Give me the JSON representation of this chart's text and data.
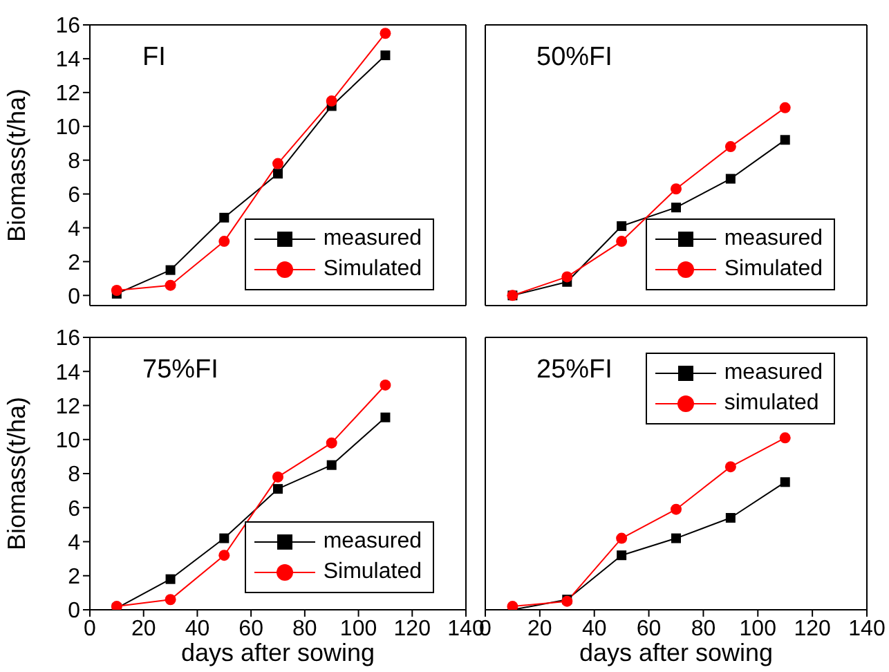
{
  "chart_data": [
    {
      "type": "line",
      "title": "FI",
      "ylabel": "Biomass(t/ha)",
      "x": [
        10,
        30,
        50,
        70,
        90,
        110
      ],
      "xlim": [
        0,
        140
      ],
      "xticks": [
        0,
        20,
        40,
        60,
        80,
        100,
        120,
        140
      ],
      "ylim": [
        -0.6,
        16
      ],
      "yticks": [
        0,
        2,
        4,
        6,
        8,
        10,
        12,
        14,
        16
      ],
      "tick_labels": "y",
      "legend": "bottom right",
      "grid": false,
      "series": [
        {
          "name": "measured",
          "color": "#000000",
          "marker": "square",
          "values": [
            0.1,
            1.5,
            4.6,
            7.2,
            11.2,
            14.2
          ]
        },
        {
          "name": "Simulated",
          "color": "#ff0000",
          "marker": "circle",
          "values": [
            0.3,
            0.6,
            3.2,
            7.8,
            11.5,
            15.5
          ]
        }
      ]
    },
    {
      "type": "line",
      "title": "50%FI",
      "x": [
        10,
        30,
        50,
        70,
        90,
        110
      ],
      "xlim": [
        0,
        140
      ],
      "xticks": [
        0,
        20,
        40,
        60,
        80,
        100,
        120,
        140
      ],
      "ylim": [
        -0.6,
        16
      ],
      "yticks": [
        0,
        2,
        4,
        6,
        8,
        10,
        12,
        14,
        16
      ],
      "tick_labels": false,
      "legend": "bottom right",
      "grid": false,
      "series": [
        {
          "name": "measured",
          "color": "#000000",
          "marker": "square",
          "values": [
            0,
            0.8,
            4.1,
            5.2,
            6.9,
            9.2
          ]
        },
        {
          "name": "Simulated",
          "color": "#ff0000",
          "marker": "circle",
          "values": [
            0,
            1.1,
            3.2,
            6.3,
            8.8,
            11.1
          ]
        }
      ]
    },
    {
      "type": "line",
      "title": "75%FI",
      "xlabel": "days after sowing",
      "ylabel": "Biomass(t/ha)",
      "x": [
        10,
        30,
        50,
        70,
        90,
        110
      ],
      "xlim": [
        0,
        140
      ],
      "xticks": [
        0,
        20,
        40,
        60,
        80,
        100,
        120,
        140
      ],
      "ylim": [
        0,
        16
      ],
      "yticks": [
        0,
        2,
        4,
        6,
        8,
        10,
        12,
        14,
        16
      ],
      "legend": "bottom right",
      "grid": false,
      "series": [
        {
          "name": "measured",
          "color": "#000000",
          "marker": "square",
          "values": [
            0.1,
            1.8,
            4.2,
            7.1,
            8.5,
            11.3
          ]
        },
        {
          "name": "Simulated",
          "color": "#ff0000",
          "marker": "circle",
          "values": [
            0.2,
            0.6,
            3.2,
            7.8,
            9.8,
            13.2
          ]
        }
      ]
    },
    {
      "type": "line",
      "title": "25%FI",
      "xlabel": "days after sowing",
      "x": [
        10,
        30,
        50,
        70,
        90,
        110
      ],
      "xlim": [
        0,
        140
      ],
      "xticks": [
        0,
        20,
        40,
        60,
        80,
        100,
        120,
        140
      ],
      "ylim": [
        0,
        16
      ],
      "yticks": [
        0,
        2,
        4,
        6,
        8,
        10,
        12,
        14,
        16
      ],
      "tick_labels": "x",
      "legend": "top right",
      "grid": false,
      "series": [
        {
          "name": "measured",
          "color": "#000000",
          "marker": "square",
          "values": [
            0,
            0.6,
            3.2,
            4.2,
            5.4,
            7.5
          ]
        },
        {
          "name": "simulated",
          "color": "#ff0000",
          "marker": "circle",
          "values": [
            0.2,
            0.5,
            4.2,
            5.9,
            8.4,
            10.1
          ]
        }
      ]
    }
  ]
}
